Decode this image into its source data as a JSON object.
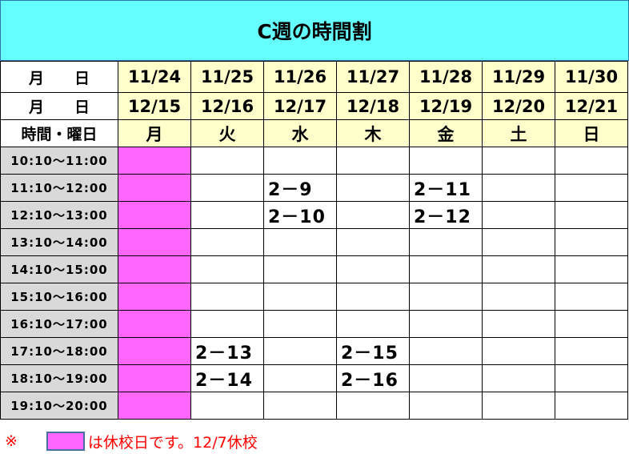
{
  "title": "C週の時間割",
  "header": {
    "row1_label": "月　　日",
    "row2_label": "月　　日",
    "row3_label": "時間・曜日",
    "dates1": [
      "11/24",
      "11/25",
      "11/26",
      "11/27",
      "11/28",
      "11/29",
      "11/30"
    ],
    "dates2": [
      "12/15",
      "12/16",
      "12/17",
      "12/18",
      "12/19",
      "12/20",
      "12/21"
    ],
    "weekdays": [
      "月",
      "火",
      "水",
      "木",
      "金",
      "土",
      "日"
    ]
  },
  "holiday_columns": [
    0
  ],
  "colors": {
    "title_bg": "#66ffff",
    "date_bg": "#ffffcc",
    "holiday": "#ff66ff",
    "time_bg": "#d9d9d9",
    "note": "#ff0000"
  },
  "rows": [
    {
      "time": "10:10～11:00",
      "cells": [
        "",
        "",
        "",
        "",
        "",
        "",
        ""
      ]
    },
    {
      "time": "11:10～12:00",
      "cells": [
        "",
        "",
        "2－9",
        "",
        "2－11",
        "",
        ""
      ]
    },
    {
      "time": "12:10～13:00",
      "cells": [
        "",
        "",
        "2－10",
        "",
        "2－12",
        "",
        ""
      ]
    },
    {
      "time": "13:10～14:00",
      "cells": [
        "",
        "",
        "",
        "",
        "",
        "",
        ""
      ]
    },
    {
      "time": "14:10～15:00",
      "cells": [
        "",
        "",
        "",
        "",
        "",
        "",
        ""
      ]
    },
    {
      "time": "15:10～16:00",
      "cells": [
        "",
        "",
        "",
        "",
        "",
        "",
        ""
      ]
    },
    {
      "time": "16:10～17:00",
      "cells": [
        "",
        "",
        "",
        "",
        "",
        "",
        ""
      ]
    },
    {
      "time": "17:10～18:00",
      "cells": [
        "",
        "2－13",
        "",
        "2－15",
        "",
        "",
        ""
      ]
    },
    {
      "time": "18:10～19:00",
      "cells": [
        "",
        "2－14",
        "",
        "2－16",
        "",
        "",
        ""
      ]
    },
    {
      "time": "19:10～20:00",
      "cells": [
        "",
        "",
        "",
        "",
        "",
        "",
        ""
      ]
    }
  ],
  "note": {
    "mark": "※",
    "text": "は休校日です。12/7休校"
  }
}
